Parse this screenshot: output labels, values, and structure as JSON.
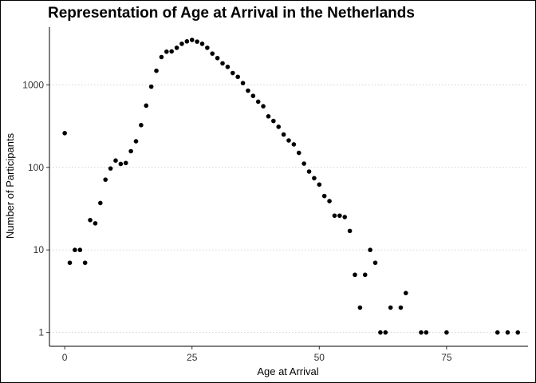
{
  "chart_data": {
    "type": "scatter",
    "title": "Representation of Age at Arrival in the Netherlands",
    "xlabel": "Age at Arrival",
    "ylabel": "Number of Participants",
    "xlim": [
      -3,
      91
    ],
    "ylim": [
      0.68,
      5000
    ],
    "yscale": "log10",
    "x_ticks": [
      0,
      25,
      50,
      75
    ],
    "y_ticks": [
      1,
      10,
      100,
      1000
    ],
    "y_tick_labels": [
      "1",
      "10",
      "100",
      "1000"
    ],
    "grid": "horizontal dotted major only",
    "point_color": "#000000",
    "points": [
      [
        0,
        260
      ],
      [
        1,
        7
      ],
      [
        2,
        10
      ],
      [
        3,
        10
      ],
      [
        4,
        7
      ],
      [
        5,
        23
      ],
      [
        6,
        21
      ],
      [
        7,
        37
      ],
      [
        8,
        71
      ],
      [
        9,
        97
      ],
      [
        10,
        121
      ],
      [
        11,
        110
      ],
      [
        12,
        113
      ],
      [
        13,
        157
      ],
      [
        14,
        207
      ],
      [
        15,
        325
      ],
      [
        16,
        560
      ],
      [
        17,
        950
      ],
      [
        18,
        1480
      ],
      [
        19,
        2170
      ],
      [
        20,
        2520
      ],
      [
        21,
        2540
      ],
      [
        22,
        2810
      ],
      [
        23,
        3140
      ],
      [
        24,
        3360
      ],
      [
        25,
        3500
      ],
      [
        26,
        3340
      ],
      [
        27,
        3140
      ],
      [
        28,
        2810
      ],
      [
        29,
        2390
      ],
      [
        30,
        2110
      ],
      [
        31,
        1820
      ],
      [
        32,
        1650
      ],
      [
        33,
        1390
      ],
      [
        34,
        1250
      ],
      [
        35,
        1050
      ],
      [
        36,
        850
      ],
      [
        37,
        735
      ],
      [
        38,
        625
      ],
      [
        39,
        550
      ],
      [
        40,
        415
      ],
      [
        41,
        365
      ],
      [
        42,
        310
      ],
      [
        43,
        250
      ],
      [
        44,
        212
      ],
      [
        45,
        190
      ],
      [
        46,
        150
      ],
      [
        47,
        111
      ],
      [
        48,
        89
      ],
      [
        49,
        74
      ],
      [
        50,
        62
      ],
      [
        51,
        45
      ],
      [
        52,
        39
      ],
      [
        53,
        26
      ],
      [
        54,
        26
      ],
      [
        55,
        25
      ],
      [
        56,
        17
      ],
      [
        57,
        5
      ],
      [
        58,
        2
      ],
      [
        59,
        5
      ],
      [
        60,
        10
      ],
      [
        61,
        7
      ],
      [
        62,
        1
      ],
      [
        63,
        1
      ],
      [
        64,
        2
      ],
      [
        66,
        2
      ],
      [
        67,
        3
      ],
      [
        70,
        1
      ],
      [
        71,
        1
      ],
      [
        75,
        1
      ],
      [
        85,
        1
      ],
      [
        87,
        1
      ],
      [
        89,
        1
      ]
    ]
  }
}
